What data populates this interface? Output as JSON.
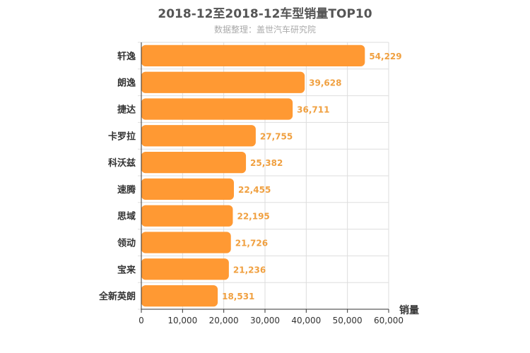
{
  "chart_data": {
    "type": "bar",
    "orientation": "horizontal",
    "title": "2018-12至2018-12车型销量TOP10",
    "subtitle": "数据整理：盖世汽车研究院",
    "xlabel": "销量",
    "ylabel": "",
    "xlim": [
      0,
      60000
    ],
    "x_ticks": [
      "0",
      "10,000",
      "20,000",
      "30,000",
      "40,000",
      "50,000",
      "60,000"
    ],
    "grid": true,
    "categories": [
      "轩逸",
      "朗逸",
      "捷达",
      "卡罗拉",
      "科沃兹",
      "速腾",
      "思域",
      "领动",
      "宝来",
      "全新英朗"
    ],
    "values": [
      54229,
      39628,
      36711,
      27755,
      25382,
      22455,
      22195,
      21726,
      21236,
      18531
    ],
    "value_labels": [
      "54,229",
      "39,628",
      "36,711",
      "27,755",
      "25,382",
      "22,455",
      "22,195",
      "21,726",
      "21,236",
      "18,531"
    ],
    "colors": {
      "bar": "#ff9933",
      "value_label": "#f0a040",
      "grid": "#dddddd",
      "axis": "#333333",
      "title": "#555555",
      "subtitle": "#aaaaaa"
    }
  }
}
